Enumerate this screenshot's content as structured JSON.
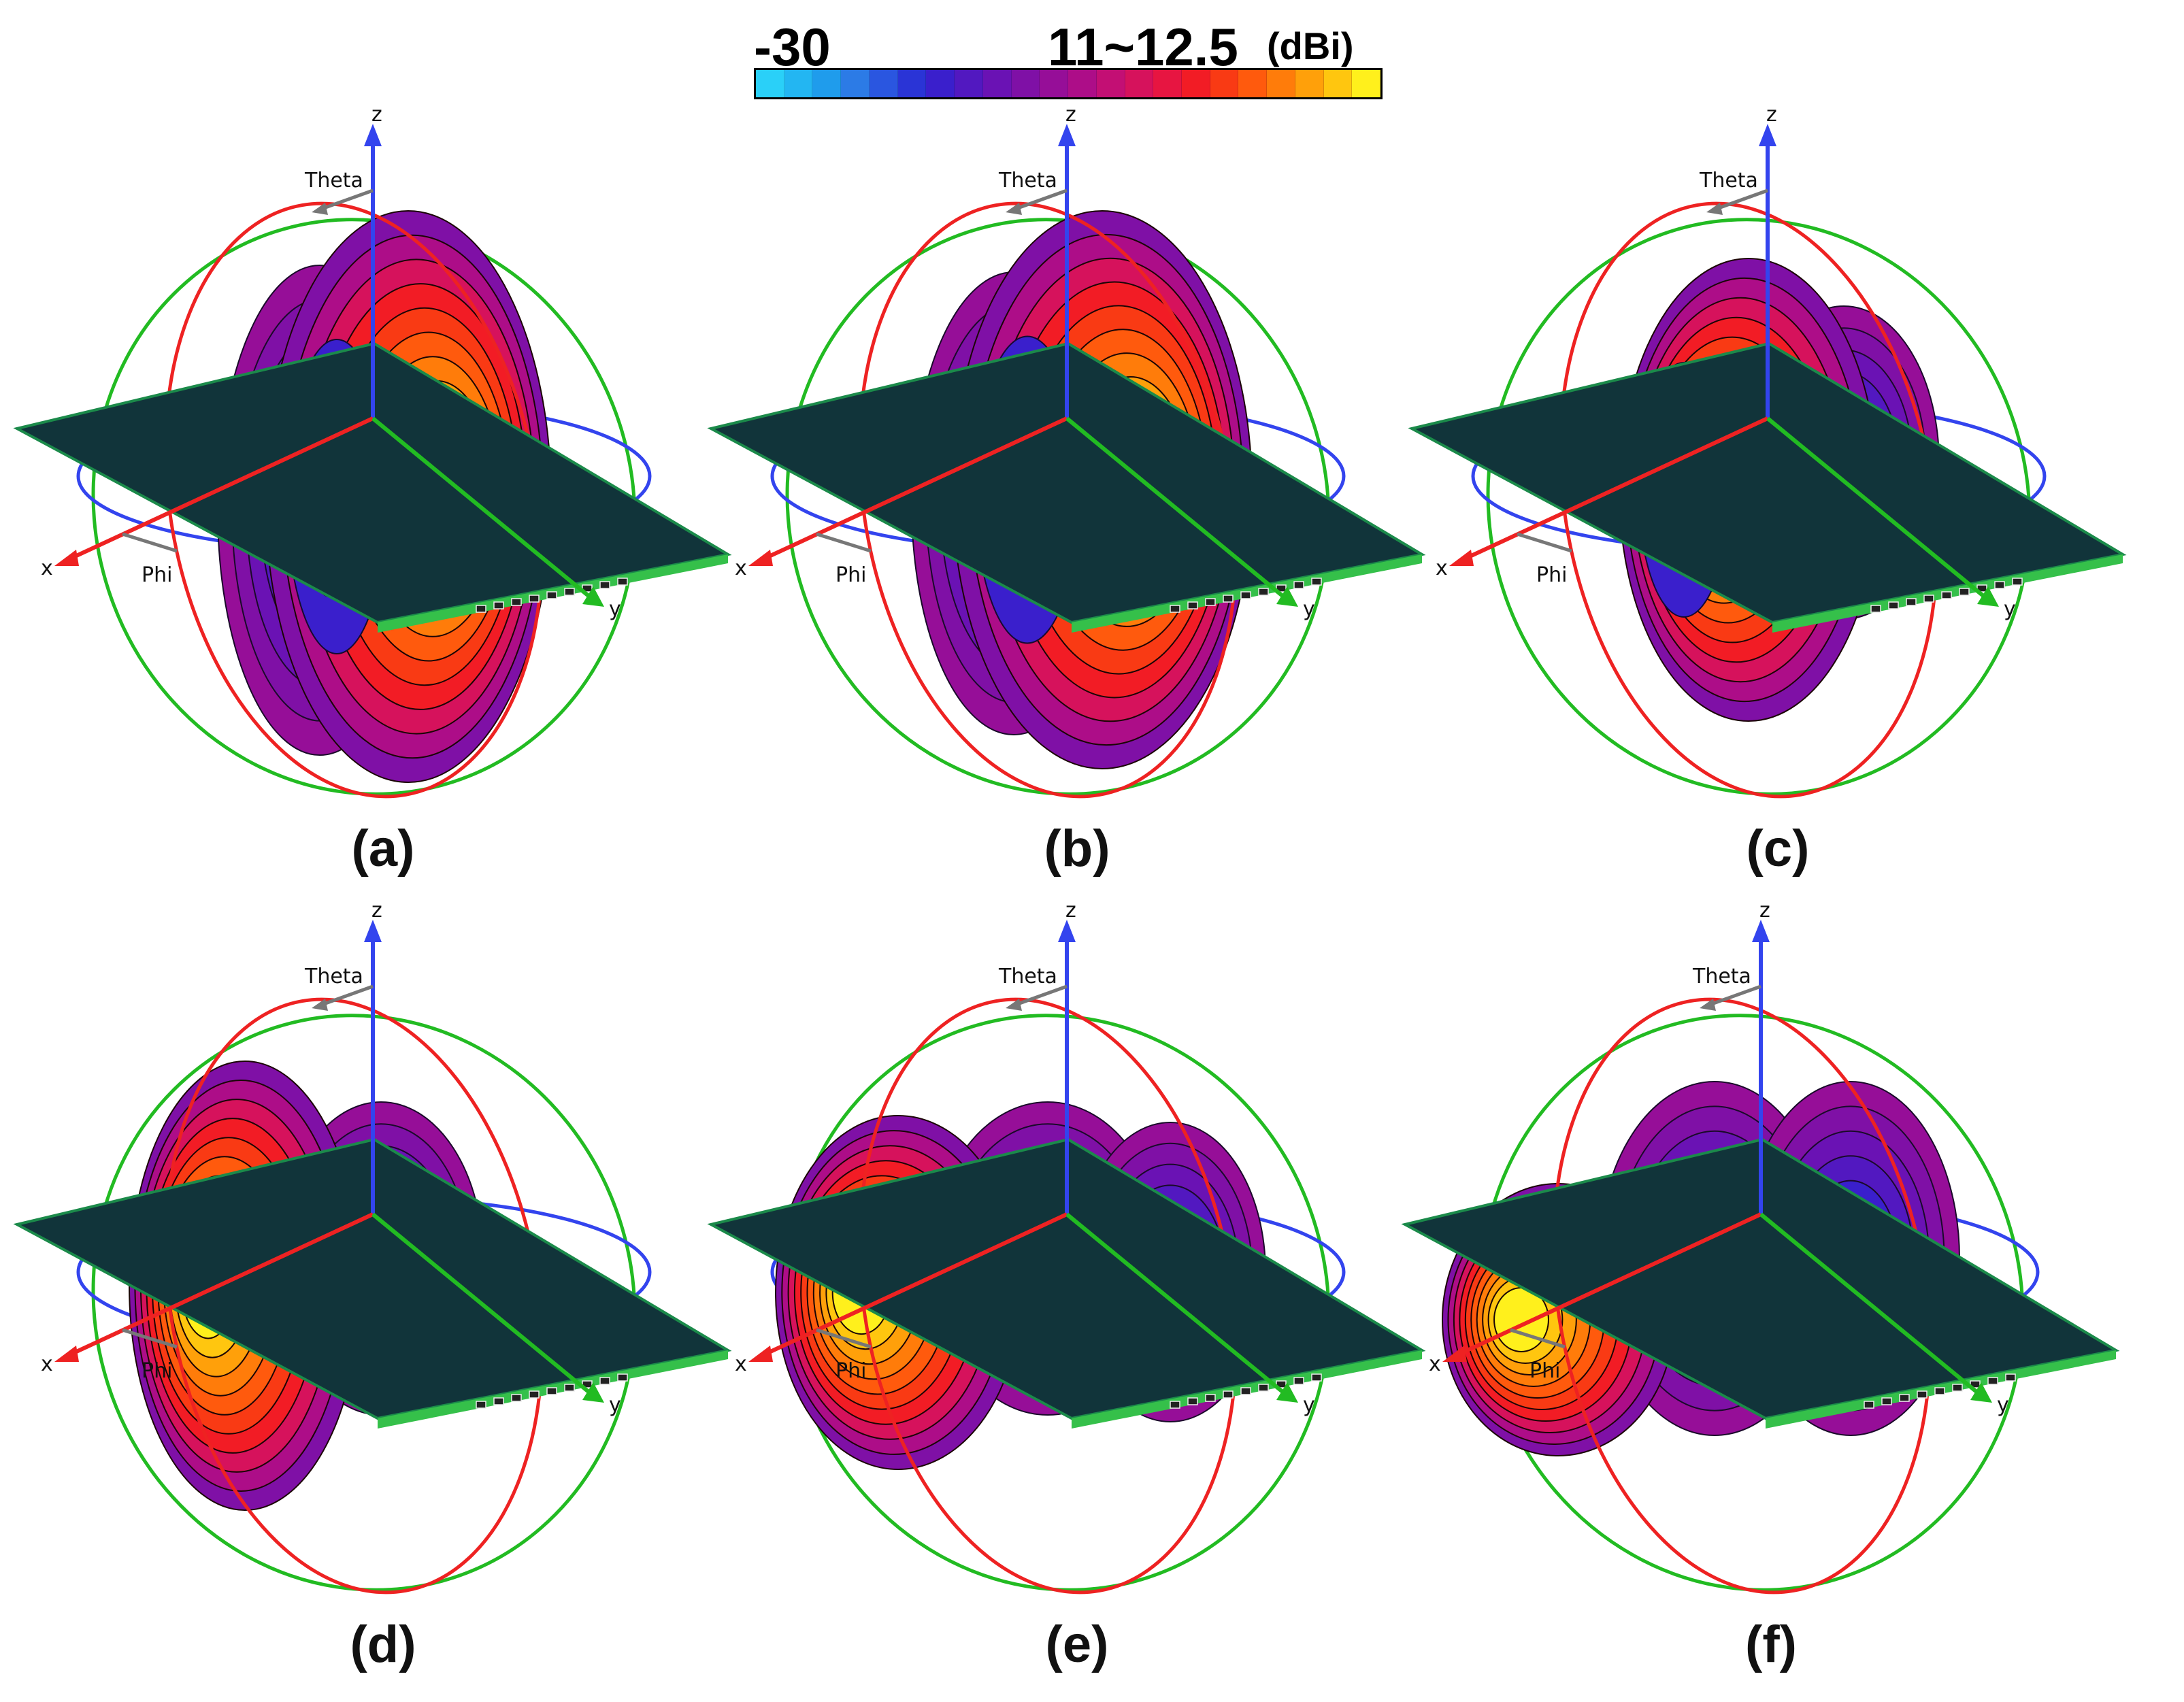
{
  "colorbar": {
    "min_label": "-30",
    "max_label": "11~12.5",
    "unit": "(dBi)",
    "colors": [
      "#2ad0f8",
      "#23b6f2",
      "#1f9cec",
      "#2c7be6",
      "#2a56e0",
      "#2a34d6",
      "#3a1fcc",
      "#5218c0",
      "#6a12b4",
      "#7f10a6",
      "#960e98",
      "#ad0d88",
      "#c30f74",
      "#d6125c",
      "#e71541",
      "#f21c25",
      "#f93a14",
      "#ff5a0d",
      "#ff7c0a",
      "#ffa00a",
      "#ffc60f",
      "#fff01c"
    ]
  },
  "axes": {
    "z": "z",
    "x": "x",
    "y": "y",
    "theta": "Theta",
    "phi": "Phi"
  },
  "panels": [
    {
      "label": "(a)",
      "lobe": "a"
    },
    {
      "label": "(b)",
      "lobe": "b"
    },
    {
      "label": "(c)",
      "lobe": "c"
    },
    {
      "label": "(d)",
      "lobe": "d"
    },
    {
      "label": "(e)",
      "lobe": "e"
    },
    {
      "label": "(f)",
      "lobe": "f"
    }
  ]
}
